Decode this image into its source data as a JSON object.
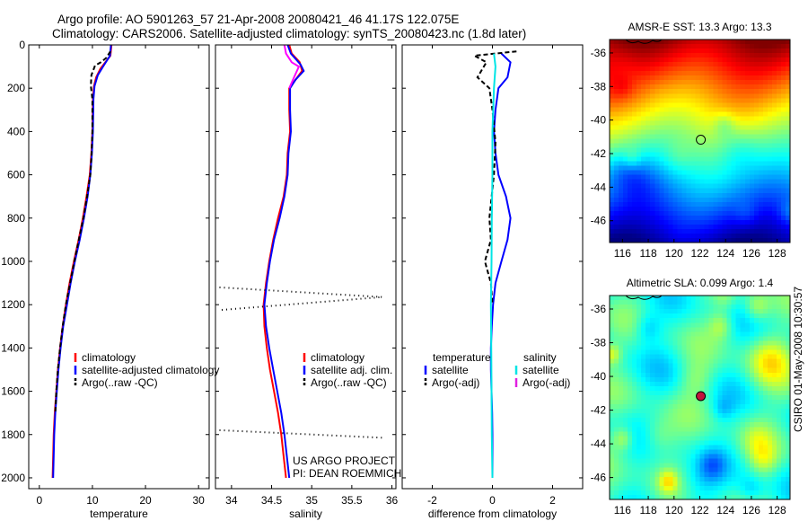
{
  "header": {
    "line1": "Argo profile: AO 5901263_57 21-Apr-2008 20080421_46 41.17S 122.075E",
    "line2": "Climatology: CARS2006. Satellite-adjusted climatology: synTS_20080423.nc (1.8d later)"
  },
  "colors": {
    "climatology": "#ff0000",
    "satellite": "#0000ff",
    "argo": "#000000",
    "salinity_satellite": "#00e5e5",
    "salinity_argo": "#e020e0"
  },
  "chart_data": [
    {
      "type": "line",
      "xlabel": "temperature",
      "ylabel": "",
      "xlim": [
        -2,
        32
      ],
      "ylim": [
        2050,
        0
      ],
      "xticks": [
        0,
        10,
        20,
        30
      ],
      "yticks": [
        0,
        200,
        400,
        600,
        800,
        1000,
        1200,
        1400,
        1600,
        1800,
        2000
      ],
      "legend": {
        "placement": "lower-left",
        "entries": [
          "climatology",
          "satellite-adjusted climatology",
          "Argo(..raw -QC)"
        ]
      },
      "series": [
        {
          "name": "climatology",
          "color": "#ff0000",
          "dash": "none",
          "points": [
            [
              13.6,
              0
            ],
            [
              13.4,
              50
            ],
            [
              11.5,
              110
            ],
            [
              10.7,
              150
            ],
            [
              10.3,
              190
            ],
            [
              10.1,
              250
            ],
            [
              10.0,
              400
            ],
            [
              9.8,
              500
            ],
            [
              9.5,
              600
            ],
            [
              8.9,
              700
            ],
            [
              8.2,
              800
            ],
            [
              7.4,
              900
            ],
            [
              6.5,
              1000
            ],
            [
              5.7,
              1100
            ],
            [
              5.0,
              1200
            ],
            [
              4.4,
              1300
            ],
            [
              3.9,
              1400
            ],
            [
              3.5,
              1500
            ],
            [
              3.2,
              1600
            ],
            [
              2.9,
              1700
            ],
            [
              2.7,
              1800
            ],
            [
              2.6,
              1900
            ],
            [
              2.5,
              2000
            ]
          ]
        },
        {
          "name": "satellite-adjusted climatology",
          "color": "#0000ff",
          "dash": "none",
          "points": [
            [
              13.5,
              0
            ],
            [
              13.3,
              50
            ],
            [
              12.0,
              100
            ],
            [
              11.0,
              140
            ],
            [
              10.4,
              190
            ],
            [
              10.2,
              250
            ],
            [
              10.1,
              400
            ],
            [
              9.9,
              500
            ],
            [
              9.6,
              600
            ],
            [
              9.1,
              700
            ],
            [
              8.4,
              800
            ],
            [
              7.6,
              900
            ],
            [
              6.7,
              1000
            ],
            [
              5.9,
              1100
            ],
            [
              5.2,
              1200
            ],
            [
              4.5,
              1300
            ],
            [
              4.0,
              1400
            ],
            [
              3.6,
              1500
            ],
            [
              3.3,
              1600
            ],
            [
              3.0,
              1700
            ],
            [
              2.8,
              1800
            ],
            [
              2.7,
              1900
            ],
            [
              2.6,
              2000
            ]
          ]
        },
        {
          "name": "Argo(..raw -QC)",
          "color": "#000000",
          "dash": "5,3",
          "points": [
            [
              13.4,
              30
            ],
            [
              12.6,
              60
            ],
            [
              11.6,
              80
            ],
            [
              10.5,
              95
            ],
            [
              9.8,
              140
            ],
            [
              9.7,
              190
            ],
            [
              10.0,
              250
            ],
            [
              10.0,
              400
            ],
            [
              9.8,
              520
            ],
            [
              9.6,
              600
            ],
            [
              9.0,
              700
            ],
            [
              8.3,
              800
            ],
            [
              7.6,
              880
            ],
            [
              6.6,
              1000
            ],
            [
              5.8,
              1100
            ],
            [
              5.0,
              1200
            ],
            [
              4.4,
              1300
            ],
            [
              3.9,
              1400
            ],
            [
              3.5,
              1500
            ],
            [
              3.2,
              1600
            ],
            [
              3.0,
              1700
            ]
          ]
        }
      ]
    },
    {
      "type": "line",
      "xlabel": "salinity",
      "ylabel": "",
      "xlim": [
        33.8,
        36.05
      ],
      "ylim": [
        2050,
        0
      ],
      "xticks": [
        34,
        34.5,
        35,
        35.5,
        36
      ],
      "xticklabels": [
        "34",
        "34.5",
        "35",
        "35.5",
        "36"
      ],
      "legend": {
        "placement": "lower-right",
        "entries": [
          "climatology",
          "satellite adj. clim.",
          "Argo(..raw -QC)"
        ]
      },
      "annotations": [
        "US ARGO PROJECT",
        "PI: DEAN ROEMMICH"
      ],
      "series": [
        {
          "name": "climatology",
          "color": "#ff0000",
          "dash": "none",
          "points": [
            [
              34.72,
              0
            ],
            [
              34.75,
              40
            ],
            [
              34.85,
              80
            ],
            [
              34.88,
              120
            ],
            [
              34.8,
              160
            ],
            [
              34.72,
              200
            ],
            [
              34.72,
              300
            ],
            [
              34.73,
              400
            ],
            [
              34.7,
              500
            ],
            [
              34.69,
              600
            ],
            [
              34.65,
              700
            ],
            [
              34.58,
              800
            ],
            [
              34.52,
              900
            ],
            [
              34.47,
              1000
            ],
            [
              34.43,
              1100
            ],
            [
              34.4,
              1200
            ],
            [
              34.41,
              1300
            ],
            [
              34.44,
              1400
            ],
            [
              34.48,
              1500
            ],
            [
              34.53,
              1600
            ],
            [
              34.58,
              1700
            ],
            [
              34.62,
              1800
            ],
            [
              34.65,
              1900
            ],
            [
              34.68,
              2000
            ]
          ]
        },
        {
          "name": "satellite adj. clim.",
          "color": "#0000ff",
          "dash": "none",
          "points": [
            [
              34.7,
              0
            ],
            [
              34.74,
              40
            ],
            [
              34.86,
              90
            ],
            [
              34.9,
              120
            ],
            [
              34.8,
              160
            ],
            [
              34.73,
              200
            ],
            [
              34.73,
              300
            ],
            [
              34.74,
              400
            ],
            [
              34.71,
              500
            ],
            [
              34.7,
              600
            ],
            [
              34.66,
              700
            ],
            [
              34.6,
              800
            ],
            [
              34.53,
              900
            ],
            [
              34.48,
              1000
            ],
            [
              34.44,
              1100
            ],
            [
              34.41,
              1200
            ],
            [
              34.43,
              1300
            ],
            [
              34.47,
              1400
            ],
            [
              34.52,
              1500
            ],
            [
              34.57,
              1600
            ],
            [
              34.62,
              1700
            ],
            [
              34.66,
              1800
            ],
            [
              34.69,
              1900
            ],
            [
              34.72,
              2000
            ]
          ]
        },
        {
          "name": "Argo salinity",
          "color": "#ff00ff",
          "dash": "none",
          "points": [
            [
              34.66,
              0
            ],
            [
              34.68,
              40
            ],
            [
              34.75,
              80
            ],
            [
              34.84,
              100
            ],
            [
              34.78,
              150
            ],
            [
              34.72,
              200
            ]
          ]
        },
        {
          "name": "Argo(..raw -QC)",
          "color": "#000000",
          "dash": "1,4",
          "points": [
            [
              33.85,
              1120
            ],
            [
              35.88,
              1165
            ],
            [
              33.85,
              1225
            ]
          ]
        },
        {
          "name": "Argo(..raw -QC) deep",
          "color": "#000000",
          "dash": "1,4",
          "points": [
            [
              33.85,
              1780
            ],
            [
              35.9,
              1815
            ]
          ]
        }
      ]
    },
    {
      "type": "line",
      "xlabel": "difference from climatology",
      "ylabel": "",
      "xlim": [
        -3,
        3
      ],
      "ylim": [
        2050,
        0
      ],
      "xticks": [
        -2,
        0,
        2
      ],
      "legend": {
        "placement": "lower-center",
        "groups": [
          {
            "title": "temperature",
            "entries": [
              "satellite",
              "Argo(-adj)"
            ]
          },
          {
            "title": "salinity",
            "entries": [
              "satellite",
              "Argo(-adj)"
            ]
          }
        ]
      },
      "series": [
        {
          "name": "temperature satellite",
          "color": "#0000ff",
          "dash": "none",
          "points": [
            [
              0.3,
              40
            ],
            [
              0.6,
              80
            ],
            [
              0.5,
              150
            ],
            [
              0.2,
              200
            ],
            [
              0.1,
              300
            ],
            [
              0.05,
              400
            ],
            [
              0.1,
              500
            ],
            [
              0.2,
              600
            ],
            [
              0.45,
              700
            ],
            [
              0.6,
              800
            ],
            [
              0.5,
              900
            ],
            [
              0.3,
              1000
            ],
            [
              0.1,
              1100
            ],
            [
              0.02,
              1200
            ],
            [
              -0.02,
              1300
            ],
            [
              -0.05,
              1400
            ],
            [
              -0.05,
              1500
            ],
            [
              -0.03,
              1600
            ],
            [
              -0.01,
              1700
            ],
            [
              0.0,
              1800
            ],
            [
              0.0,
              2000
            ]
          ]
        },
        {
          "name": "temperature Argo(-adj)",
          "color": "#000000",
          "dash": "5,3",
          "points": [
            [
              0.8,
              30
            ],
            [
              -0.6,
              50
            ],
            [
              -0.2,
              80
            ],
            [
              -0.5,
              150
            ],
            [
              -0.1,
              200
            ],
            [
              0.0,
              300
            ],
            [
              0.1,
              450
            ],
            [
              0.05,
              600
            ],
            [
              -0.1,
              800
            ],
            [
              -0.05,
              900
            ],
            [
              -0.25,
              1000
            ],
            [
              -0.05,
              1100
            ],
            [
              0.0,
              1200
            ]
          ]
        },
        {
          "name": "salinity satellite",
          "color": "#00e5e5",
          "dash": "none",
          "points": [
            [
              0.05,
              40
            ],
            [
              0.1,
              100
            ],
            [
              0.05,
              200
            ],
            [
              0.0,
              400
            ],
            [
              0.0,
              600
            ],
            [
              -0.02,
              800
            ],
            [
              -0.03,
              1000
            ],
            [
              -0.05,
              1200
            ],
            [
              -0.04,
              1400
            ],
            [
              -0.03,
              1600
            ],
            [
              -0.02,
              1800
            ],
            [
              0.0,
              2000
            ]
          ]
        },
        {
          "name": "salinity Argo(-adj)",
          "color": "#e020e0",
          "dash": "none",
          "points": []
        }
      ]
    },
    {
      "type": "heatmap",
      "title": "AMSR-E SST: 13.3 Argo: 13.3",
      "xlabel": "",
      "ylabel": "",
      "xlim": [
        115,
        129
      ],
      "ylim": [
        -47.3,
        -35.2
      ],
      "xticks": [
        116,
        118,
        120,
        122,
        124,
        126,
        128
      ],
      "yticks": [
        -36,
        -38,
        -40,
        -42,
        -44,
        -46
      ],
      "marker": {
        "lon": 122.075,
        "lat": -41.17
      }
    },
    {
      "type": "heatmap",
      "title": "Altimetric SLA: 0.099 Argo: 1.4",
      "xlabel": "",
      "ylabel": "",
      "xlim": [
        115,
        129
      ],
      "ylim": [
        -47.3,
        -35.2
      ],
      "xticks": [
        116,
        118,
        120,
        122,
        124,
        126,
        128
      ],
      "yticks": [
        -36,
        -38,
        -40,
        -42,
        -44,
        -46
      ],
      "marker": {
        "lon": 122.075,
        "lat": -41.17
      }
    }
  ],
  "footer": {
    "side_label": "CSIRO 01-May-2008 10:30:57"
  }
}
